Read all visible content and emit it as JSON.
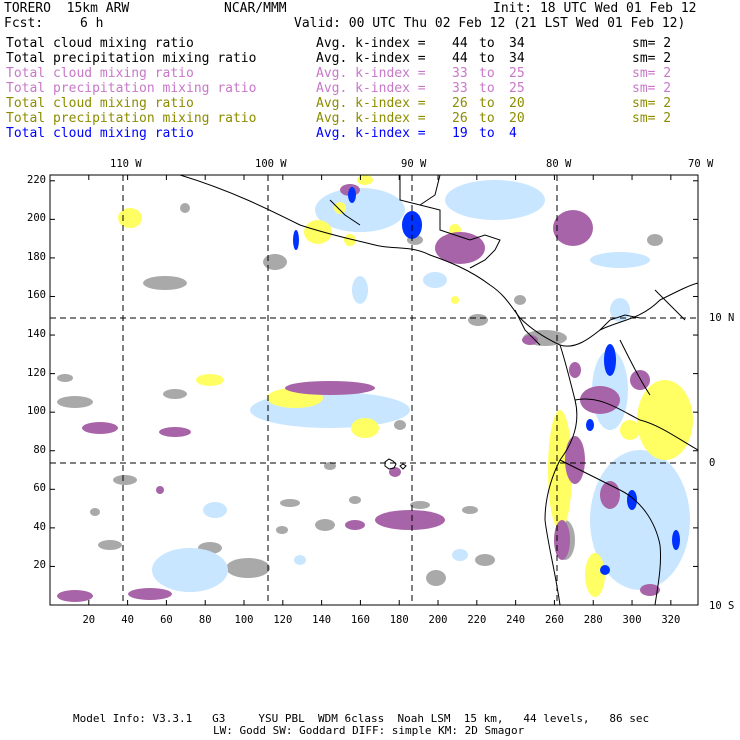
{
  "header": {
    "model": "TORERO  15km ARW",
    "org": "NCAR/MMM",
    "init": "Init: 18 UTC Wed 01 Feb 12",
    "fcst_label": "Fcst:",
    "fcst_value": "6 h",
    "valid": "Valid: 00 UTC Thu 02 Feb 12 (21 LST Wed 01 Feb 12)"
  },
  "legend": [
    {
      "field": "Total cloud mixing ratio",
      "kidx": "Avg. k-index =",
      "from": "44",
      "to_word": "to",
      "to": "34",
      "sm": "sm= 2",
      "color": "#000000"
    },
    {
      "field": "Total precipitation mixing ratio",
      "kidx": "Avg. k-index =",
      "from": "44",
      "to_word": "to",
      "to": "34",
      "sm": "sm= 2",
      "color": "#000000"
    },
    {
      "field": "Total cloud mixing ratio",
      "kidx": "Avg. k-index =",
      "from": "33",
      "to_word": "to",
      "to": "25",
      "sm": "sm= 2",
      "color": "#c878c8"
    },
    {
      "field": "Total precipitation mixing ratio",
      "kidx": "Avg. k-index =",
      "from": "33",
      "to_word": "to",
      "to": "25",
      "sm": "sm= 2",
      "color": "#c878c8"
    },
    {
      "field": "Total cloud mixing ratio",
      "kidx": "Avg. k-index =",
      "from": "26",
      "to_word": "to",
      "to": "20",
      "sm": "sm= 2",
      "color": "#8c8c00"
    },
    {
      "field": "Total precipitation mixing ratio",
      "kidx": "Avg. k-index =",
      "from": "26",
      "to_word": "to",
      "to": "20",
      "sm": "sm= 2",
      "color": "#8c8c00"
    },
    {
      "field": "Total cloud mixing ratio",
      "kidx": "Avg. k-index =",
      "from": "19",
      "to_word": "to",
      "to": "4",
      "sm": "",
      "color": "#0000ff"
    }
  ],
  "map": {
    "lon_labels": [
      "110 W",
      "100 W",
      "90 W",
      "80 W",
      "70 W"
    ],
    "lat_labels": [
      "10 N",
      "0",
      "10 S"
    ],
    "x_ticks": [
      "20",
      "40",
      "60",
      "80",
      "100",
      "120",
      "140",
      "160",
      "180",
      "200",
      "220",
      "240",
      "260",
      "280",
      "300",
      "320"
    ],
    "y_ticks": [
      "20",
      "40",
      "60",
      "80",
      "100",
      "120",
      "140",
      "160",
      "180",
      "200",
      "220"
    ],
    "colors": {
      "gray": "#a9a9a9",
      "purple": "#a864a8",
      "yellow": "#ffff64",
      "lightblue": "#c8e6ff",
      "blue": "#0032ff"
    }
  },
  "footer": {
    "line1": "Model Info: V3.3.1   G3     YSU PBL  WDM 6class  Noah LSM  15 km,   44 levels,   86 sec",
    "line2": "LW: Godd SW: Goddard DIFF: simple KM: 2D Smagor"
  }
}
